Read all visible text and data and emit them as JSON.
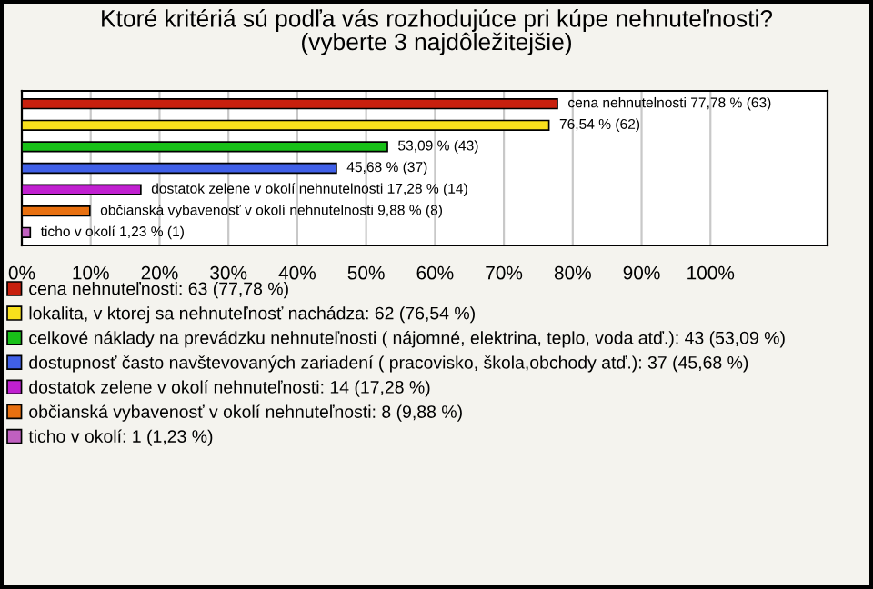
{
  "chart_data": {
    "type": "bar",
    "orientation": "horizontal",
    "title": "Ktoré kritériá sú podľa vás rozhodujúce pri kúpe nehnuteľnosti?\n(vyberte 3 najdôležitejšie)",
    "categories": [
      null,
      null,
      null,
      null,
      null,
      null,
      null
    ],
    "series": [
      {
        "name": "cena nehnuteľnosti: 63 (77,78 %)",
        "color": "#c8200e",
        "values": [
          77.78,
          null,
          null,
          null,
          null,
          null,
          null
        ],
        "value_labels": [
          "cena nehnutelnosti 77,78 % (63)",
          null,
          null,
          null,
          null,
          null,
          null
        ]
      },
      {
        "name": "lokalita, v ktorej sa nehnuteľnosť nachádza: 62 (76,54 %)",
        "color": "#f8e01c",
        "values": [
          null,
          76.54,
          null,
          null,
          null,
          null,
          null
        ],
        "value_labels": [
          null,
          "76,54 % (62)",
          null,
          null,
          null,
          null,
          null
        ]
      },
      {
        "name": "celkové náklady na prevádzku nehnuteľnosti ( nájomné, elektrina, teplo, voda atď.): 43 (53,09 %)",
        "color": "#18c018",
        "values": [
          null,
          null,
          53.09,
          null,
          null,
          null,
          null
        ],
        "value_labels": [
          null,
          null,
          "53,09 % (43)",
          null,
          null,
          null,
          null
        ]
      },
      {
        "name": "dostupnosť často navštevovaných zariadení ( pracovisko, škola,obchody atď.): 37 (45,68 %)",
        "color": "#4060e8",
        "values": [
          null,
          null,
          null,
          45.68,
          null,
          null,
          null
        ],
        "value_labels": [
          null,
          null,
          null,
          "45,68 % (37)",
          null,
          null,
          null
        ]
      },
      {
        "name": "dostatok zelene v okolí nehnuteľnosti: 14 (17,28 %)",
        "color": "#c020d0",
        "values": [
          null,
          null,
          null,
          null,
          17.28,
          null,
          null
        ],
        "value_labels": [
          null,
          null,
          null,
          null,
          "dostatok zelene v okolí nehnutelnosti 17,28 % (14)",
          null,
          null
        ]
      },
      {
        "name": "občianská vybavenosť v okolí nehnuteľnosti: 8 (9,88 %)",
        "color": "#e87010",
        "values": [
          null,
          null,
          null,
          null,
          null,
          9.88,
          null
        ],
        "value_labels": [
          null,
          null,
          null,
          null,
          null,
          "občianská vybavenosť v okolí nehnutelnosti 9,88 % (8)",
          null
        ]
      },
      {
        "name": "ticho v okolí: 1 (1,23 %)",
        "color": "#c060c0",
        "values": [
          null,
          null,
          null,
          null,
          null,
          null,
          1.23
        ],
        "value_labels": [
          null,
          null,
          null,
          null,
          null,
          null,
          "ticho v okolí 1,23 % (1)"
        ]
      }
    ],
    "xlim": [
      0,
      117
    ],
    "xticks": [
      {
        "value": 0,
        "label": "0%"
      },
      {
        "value": 10,
        "label": "10%"
      },
      {
        "value": 20,
        "label": "20%"
      },
      {
        "value": 30,
        "label": "30%"
      },
      {
        "value": 40,
        "label": "40%"
      },
      {
        "value": 50,
        "label": "50%"
      },
      {
        "value": 60,
        "label": "60%"
      },
      {
        "value": 70,
        "label": "70%"
      },
      {
        "value": 80,
        "label": "80%"
      },
      {
        "value": 90,
        "label": "90%"
      },
      {
        "value": 100,
        "label": "100%"
      }
    ],
    "grid": "x",
    "legend": "bottom"
  }
}
